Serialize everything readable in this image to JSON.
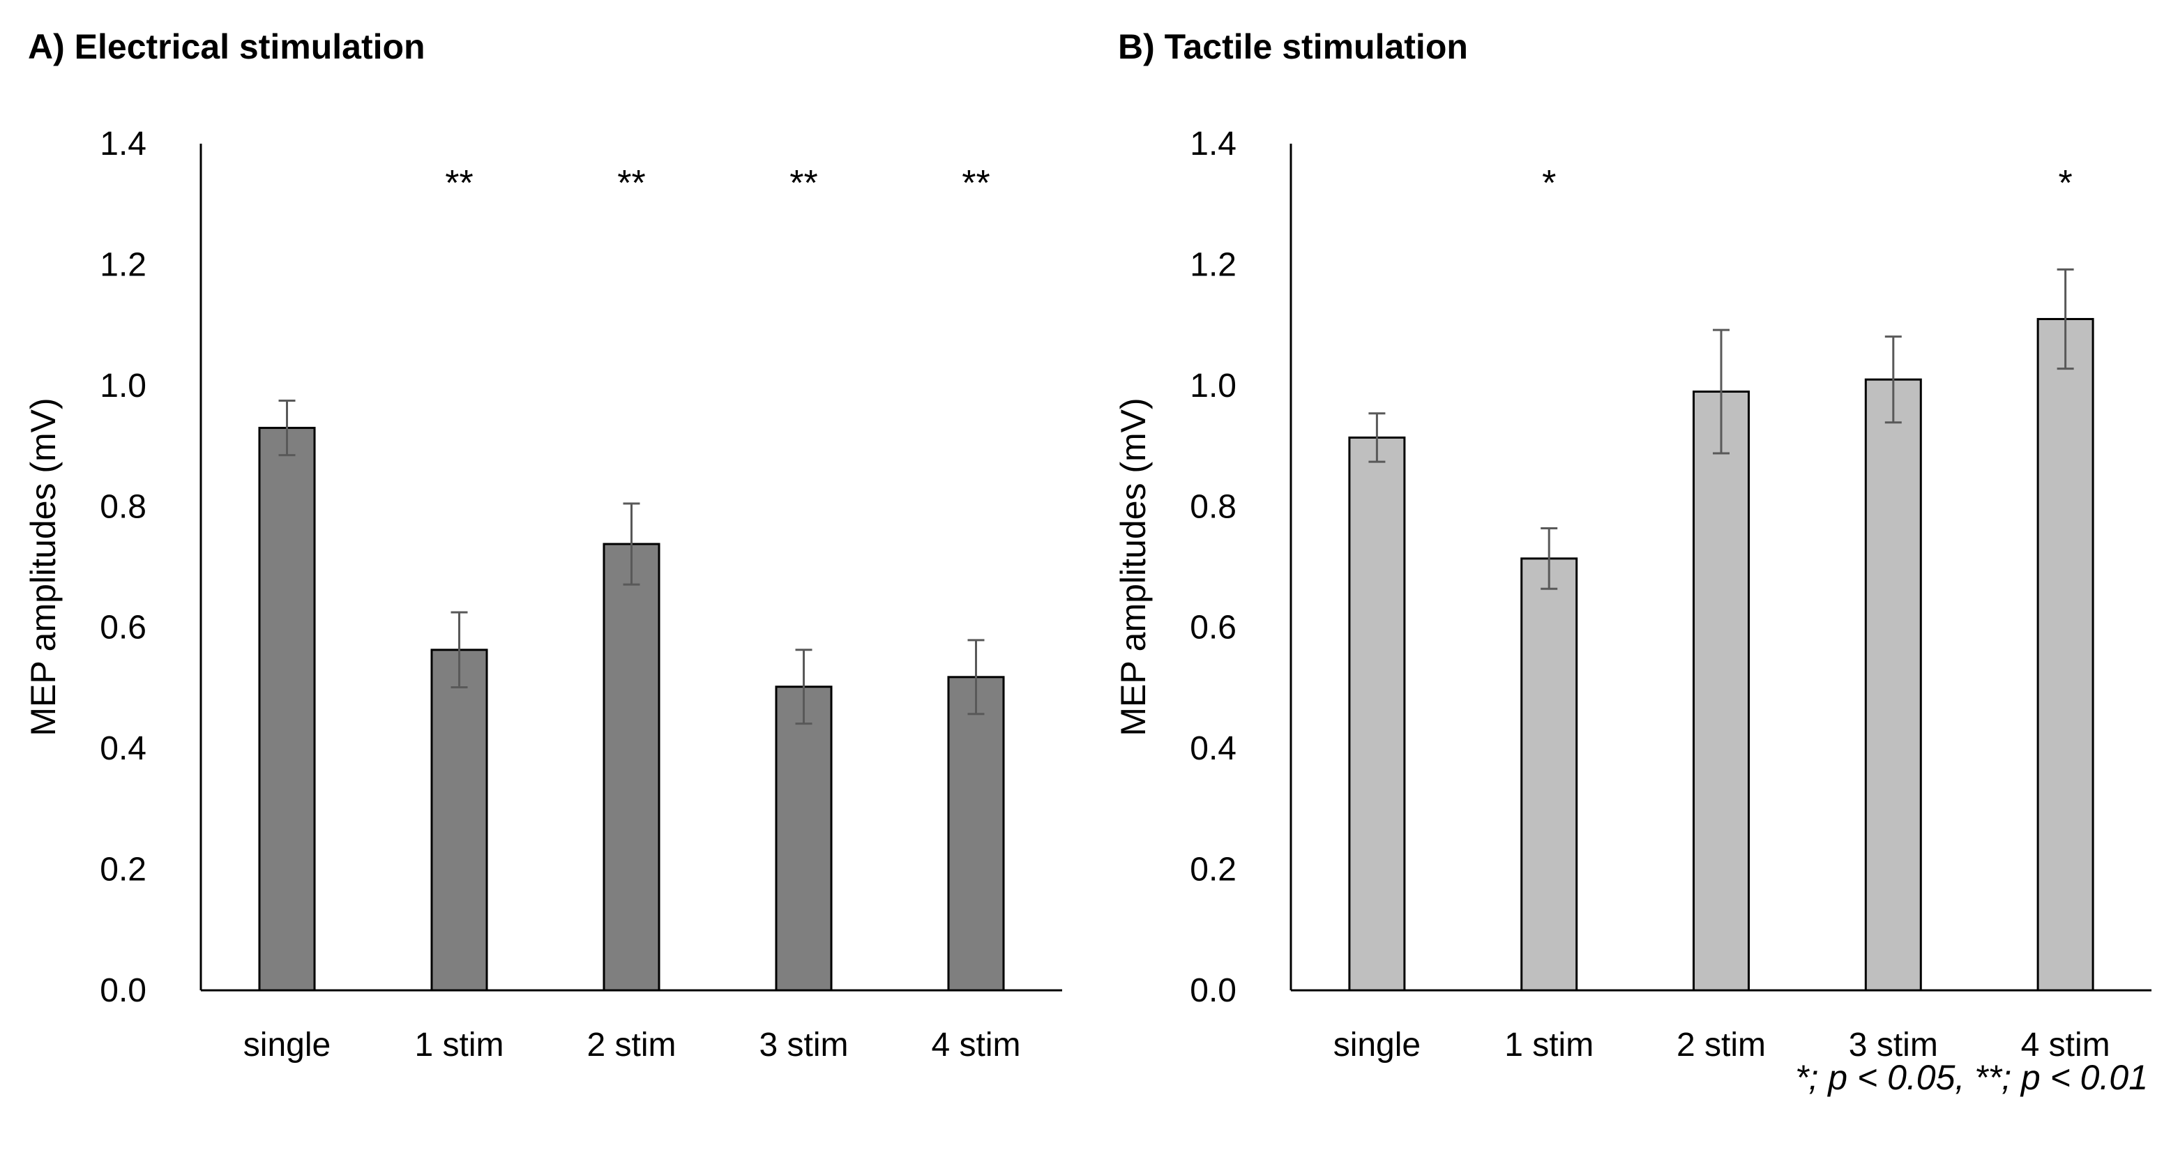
{
  "chart_data": [
    {
      "type": "bar",
      "title": "A) Electrical stimulation",
      "ylabel": "MEP amplitudes (mV)",
      "xlabel": "",
      "categories": [
        "single",
        "1 stim",
        "2 stim",
        "3 stim",
        "4 stim"
      ],
      "values": [
        0.93,
        0.563,
        0.738,
        0.502,
        0.518
      ],
      "errors": [
        0.045,
        0.062,
        0.067,
        0.061,
        0.061
      ],
      "significance": [
        "",
        "**",
        "**",
        "**",
        "**"
      ],
      "ylim": [
        0,
        1.4
      ],
      "yticks": [
        "0.0",
        "0.2",
        "0.4",
        "0.6",
        "0.8",
        "1.0",
        "1.2",
        "1.4"
      ],
      "bar_color": "#7f7f7f",
      "grid": false
    },
    {
      "type": "bar",
      "title": "B) Tactile stimulation",
      "ylabel": "MEP amplitudes (mV)",
      "xlabel": "",
      "categories": [
        "single",
        "1 stim",
        "2 stim",
        "3 stim",
        "4 stim"
      ],
      "values": [
        0.914,
        0.714,
        0.99,
        1.01,
        1.11
      ],
      "errors": [
        0.04,
        0.05,
        0.102,
        0.071,
        0.082
      ],
      "significance": [
        "",
        "*",
        "",
        "",
        "*"
      ],
      "ylim": [
        0,
        1.4
      ],
      "yticks": [
        "0.0",
        "0.2",
        "0.4",
        "0.6",
        "0.8",
        "1.0",
        "1.2",
        "1.4"
      ],
      "bar_color": "#bfbfbf",
      "grid": false
    }
  ],
  "footnote": "*; p < 0.05, **; p < 0.01",
  "colors": {
    "axis": "#000000",
    "error_bar": "#595959",
    "bar_edge": "#000000"
  }
}
